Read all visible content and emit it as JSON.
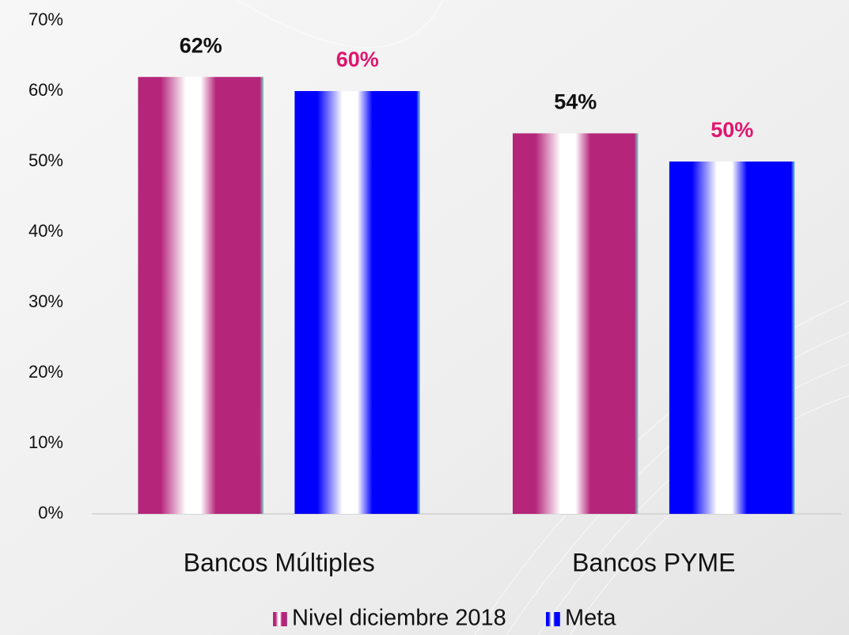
{
  "chart_data": {
    "type": "bar",
    "categories": [
      "Bancos Múltiples",
      "Bancos PYME"
    ],
    "series": [
      {
        "name": "Nivel diciembre 2018",
        "color": "#b5257a",
        "label_color": "#111111",
        "values": [
          62,
          54
        ],
        "value_labels": [
          "62%",
          "54%"
        ]
      },
      {
        "name": "Meta",
        "color": "#0000ff",
        "label_color": "#e0166f",
        "values": [
          60,
          50
        ],
        "value_labels": [
          "60%",
          "50%"
        ]
      }
    ],
    "ylim": [
      0,
      70
    ],
    "yticks": [
      {
        "value": 0,
        "label": "0%"
      },
      {
        "value": 10,
        "label": "10%"
      },
      {
        "value": 20,
        "label": "20%"
      },
      {
        "value": 30,
        "label": "30%"
      },
      {
        "value": 40,
        "label": "40%"
      },
      {
        "value": 50,
        "label": "50%"
      },
      {
        "value": 60,
        "label": "60%"
      },
      {
        "value": 70,
        "label": "70%"
      }
    ],
    "grid": false,
    "legend": "bottom"
  }
}
